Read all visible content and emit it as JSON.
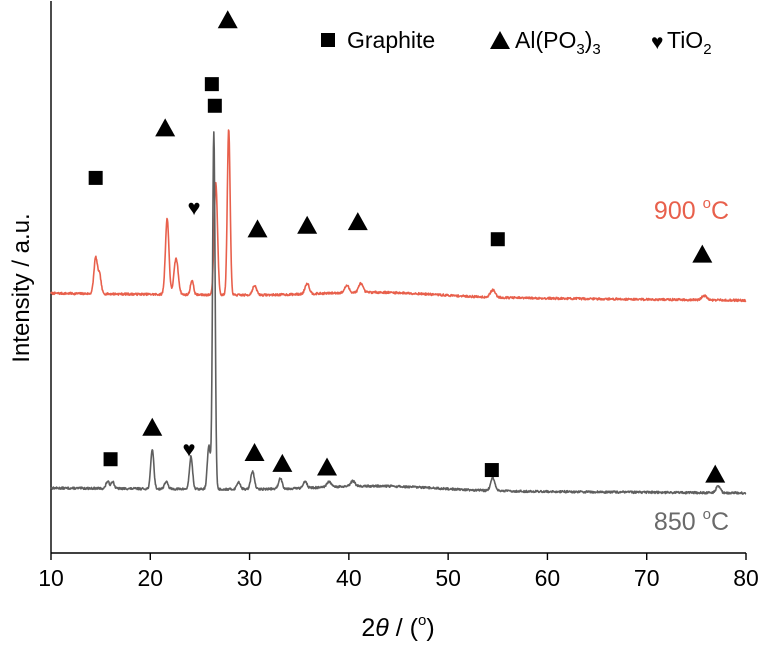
{
  "chart_data": {
    "type": "line",
    "title": "",
    "xlabel_prefix": "2",
    "xlabel_theta": "θ",
    "xlabel_suffix": " / (",
    "xlabel_degree": "o",
    "xlabel_close": ")",
    "ylabel": "Intensity / a.u.",
    "xlim": [
      10,
      80
    ],
    "xticks": [
      "10",
      "20",
      "30",
      "40",
      "50",
      "60",
      "70",
      "80"
    ],
    "legend": {
      "placement": "top-right",
      "graphite_label": "Graphite",
      "alpo3_label_a": "Al(PO",
      "alpo3_label_sub": "3",
      "alpo3_label_b": ")",
      "alpo3_label_sub2": "3",
      "tio2_label_a": "TiO",
      "tio2_label_sub": "2"
    },
    "series": [
      {
        "name": "900 °C",
        "label_number": "900 ",
        "label_degree": "o",
        "label_unit": "C",
        "color": "#e8604c",
        "baseline": 0.72,
        "noise_seed": 7,
        "peaks": [
          {
            "x": 14.5,
            "h": 0.1,
            "w": 0.25
          },
          {
            "x": 14.9,
            "h": 0.05,
            "w": 0.22
          },
          {
            "x": 21.7,
            "h": 0.21,
            "w": 0.25
          },
          {
            "x": 22.6,
            "h": 0.1,
            "w": 0.3
          },
          {
            "x": 24.2,
            "h": 0.04,
            "w": 0.22
          },
          {
            "x": 26.6,
            "h": 0.31,
            "w": 0.24
          },
          {
            "x": 27.9,
            "h": 0.46,
            "w": 0.2
          },
          {
            "x": 30.5,
            "h": 0.025,
            "w": 0.3
          },
          {
            "x": 35.8,
            "h": 0.03,
            "w": 0.3
          },
          {
            "x": 39.8,
            "h": 0.02,
            "w": 0.3
          },
          {
            "x": 41.2,
            "h": 0.025,
            "w": 0.3
          },
          {
            "x": 54.5,
            "h": 0.02,
            "w": 0.35
          },
          {
            "x": 75.8,
            "h": 0.012,
            "w": 0.35
          }
        ],
        "markers": [
          {
            "shape": "square",
            "x": 14.5,
            "y": 1.04
          },
          {
            "shape": "triangle",
            "x": 21.5,
            "y": 1.18
          },
          {
            "shape": "heart",
            "x": 24.4,
            "y": 0.96
          },
          {
            "shape": "square",
            "x": 26.2,
            "y": 1.3
          },
          {
            "shape": "triangle",
            "x": 27.8,
            "y": 1.48
          },
          {
            "shape": "triangle",
            "x": 30.8,
            "y": 0.9
          },
          {
            "shape": "triangle",
            "x": 35.8,
            "y": 0.91
          },
          {
            "shape": "triangle",
            "x": 40.9,
            "y": 0.92
          },
          {
            "shape": "square",
            "x": 55.0,
            "y": 0.87
          },
          {
            "shape": "triangle",
            "x": 75.6,
            "y": 0.83
          }
        ]
      },
      {
        "name": "850 °C",
        "label_number": "850 ",
        "label_degree": "o",
        "label_unit": "C",
        "color": "#5f5f5f",
        "baseline": 0.18,
        "noise_seed": 13,
        "peaks": [
          {
            "x": 15.7,
            "h": 0.02,
            "w": 0.22
          },
          {
            "x": 16.2,
            "h": 0.02,
            "w": 0.22
          },
          {
            "x": 20.2,
            "h": 0.11,
            "w": 0.22
          },
          {
            "x": 21.6,
            "h": 0.02,
            "w": 0.25
          },
          {
            "x": 24.1,
            "h": 0.09,
            "w": 0.22
          },
          {
            "x": 25.9,
            "h": 0.12,
            "w": 0.22
          },
          {
            "x": 26.4,
            "h": 0.99,
            "w": 0.18
          },
          {
            "x": 28.9,
            "h": 0.02,
            "w": 0.25
          },
          {
            "x": 30.3,
            "h": 0.05,
            "w": 0.25
          },
          {
            "x": 33.1,
            "h": 0.03,
            "w": 0.25
          },
          {
            "x": 35.6,
            "h": 0.02,
            "w": 0.25
          },
          {
            "x": 38.0,
            "h": 0.015,
            "w": 0.3
          },
          {
            "x": 40.4,
            "h": 0.015,
            "w": 0.3
          },
          {
            "x": 54.5,
            "h": 0.035,
            "w": 0.3
          },
          {
            "x": 77.2,
            "h": 0.02,
            "w": 0.3
          }
        ],
        "markers": [
          {
            "shape": "square",
            "x": 16.0,
            "y": 0.26
          },
          {
            "shape": "triangle",
            "x": 20.2,
            "y": 0.35
          },
          {
            "shape": "heart",
            "x": 23.9,
            "y": 0.29
          },
          {
            "shape": "square",
            "x": 26.5,
            "y": 1.24
          },
          {
            "shape": "triangle",
            "x": 30.5,
            "y": 0.28
          },
          {
            "shape": "triangle",
            "x": 33.3,
            "y": 0.25
          },
          {
            "shape": "triangle",
            "x": 37.8,
            "y": 0.24
          },
          {
            "shape": "square",
            "x": 54.4,
            "y": 0.23
          },
          {
            "shape": "triangle",
            "x": 76.9,
            "y": 0.22
          }
        ]
      }
    ]
  }
}
